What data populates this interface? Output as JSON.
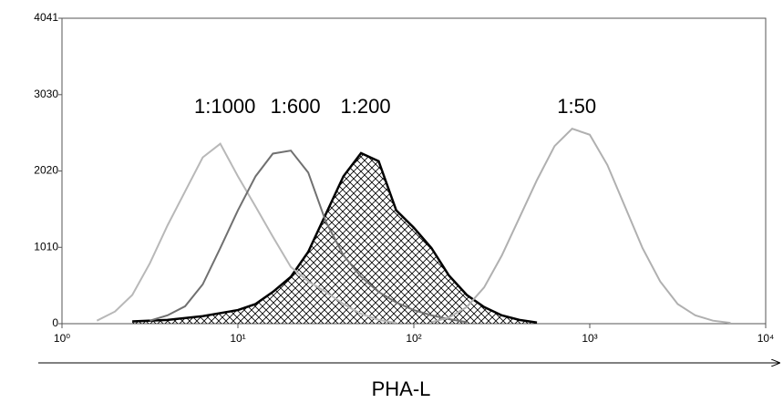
{
  "chart_data": {
    "type": "line",
    "x_label": "PHA-L",
    "xscale": "log",
    "xlim": [
      1,
      10000
    ],
    "xticks": [
      {
        "value": 1,
        "label": "10⁰"
      },
      {
        "value": 10,
        "label": "10¹"
      },
      {
        "value": 100,
        "label": "10²"
      },
      {
        "value": 1000,
        "label": "10³"
      },
      {
        "value": 10000,
        "label": "10⁴"
      }
    ],
    "ylim": [
      0,
      4041
    ],
    "yticks": [
      0,
      1010,
      2020,
      3030,
      4041
    ],
    "series": [
      {
        "name": "1:200",
        "color": "#000000",
        "hatched": true,
        "x": [
          2.51,
          3.98,
          6.31,
          10,
          12.6,
          15.8,
          20,
          25.1,
          31.6,
          39.8,
          50.1,
          63.1,
          79.4,
          100,
          126,
          158,
          200,
          251,
          316,
          398,
          501
        ],
        "values": [
          30,
          50,
          100,
          180,
          260,
          420,
          620,
          950,
          1450,
          1950,
          2256,
          2150,
          1500,
          1270,
          1000,
          640,
          380,
          220,
          110,
          50,
          15
        ]
      },
      {
        "name": "1:1000",
        "color": "#b8b8b8",
        "hatched": false,
        "x": [
          1.58,
          2.0,
          2.51,
          3.16,
          3.98,
          5.01,
          6.31,
          7.94,
          10,
          12.6,
          15.8,
          20,
          25.1,
          31.6,
          39.8,
          50.1,
          63.1,
          79.4
        ],
        "values": [
          40,
          160,
          380,
          800,
          1300,
          1750,
          2200,
          2380,
          1950,
          1550,
          1150,
          750,
          560,
          420,
          260,
          130,
          50,
          10
        ]
      },
      {
        "name": "1:600",
        "color": "#707070",
        "hatched": false,
        "x": [
          3.16,
          3.98,
          5.01,
          6.31,
          7.94,
          10,
          12.6,
          15.8,
          20,
          25.1,
          31.6,
          39.8,
          50.1,
          63.1,
          79.4,
          100,
          126,
          158,
          200
        ],
        "values": [
          40,
          110,
          230,
          520,
          1000,
          1500,
          1950,
          2250,
          2290,
          2000,
          1350,
          905,
          620,
          420,
          280,
          180,
          110,
          60,
          20
        ]
      },
      {
        "name": "1:50",
        "color": "#b0b0b0",
        "hatched": false,
        "x": [
          126,
          158,
          200,
          251,
          316,
          398,
          501,
          631,
          794,
          1000,
          1259,
          1585,
          1995,
          2512,
          3162,
          3981,
          5012,
          6310
        ],
        "values": [
          20,
          80,
          220,
          480,
          900,
          1400,
          1900,
          2350,
          2580,
          2500,
          2100,
          1550,
          1000,
          560,
          260,
          110,
          40,
          10
        ]
      }
    ]
  }
}
